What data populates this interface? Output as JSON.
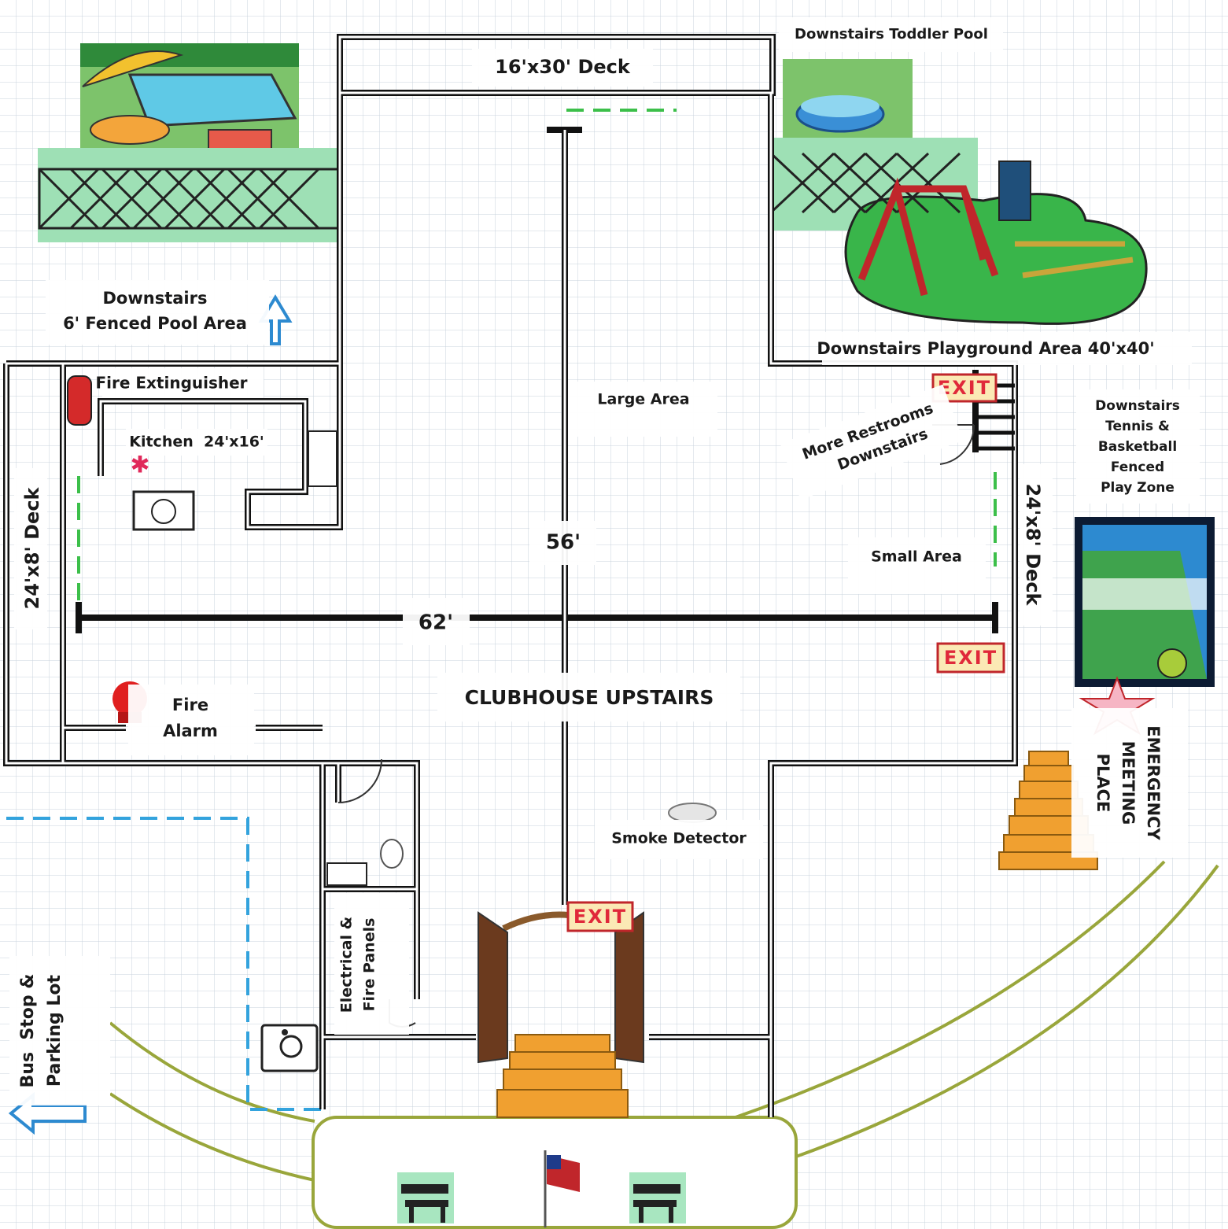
{
  "labels": {
    "deck_top": "16'x30' Deck",
    "toddler_pool": "Downstairs Toddler Pool",
    "pool_area": [
      "Downstairs",
      "6' Fenced Pool Area"
    ],
    "fire_extinguisher": "Fire Extinguisher",
    "kitchen": "Kitchen  24'x16'",
    "playground": "Downstairs Playground Area 40'x40'",
    "exits": [
      "EXIT",
      "EXIT",
      "EXIT"
    ],
    "restrooms": [
      "More Restrooms",
      "Downstairs"
    ],
    "large_area": "Large Area",
    "tennis": [
      "Downstairs",
      "Tennis &",
      "Basketball",
      "Fenced",
      "Play Zone"
    ],
    "deck_left": "24'x8' Deck",
    "deck_right": "24'x8' Deck",
    "dim_vertical": "56'",
    "small_area": "Small Area",
    "dim_horizontal": "62'",
    "fire_alarm": [
      "Fire",
      "Alarm"
    ],
    "clubhouse": "CLUBHOUSE UPSTAIRS",
    "meeting": [
      "EMERGENCY",
      "MEETING",
      "PLACE"
    ],
    "smoke_detector": "Smoke Detector",
    "panels": [
      "Electrical &",
      "Fire Panels"
    ],
    "bus_stop": [
      "Bus  Stop &",
      "Parking Lot"
    ]
  }
}
